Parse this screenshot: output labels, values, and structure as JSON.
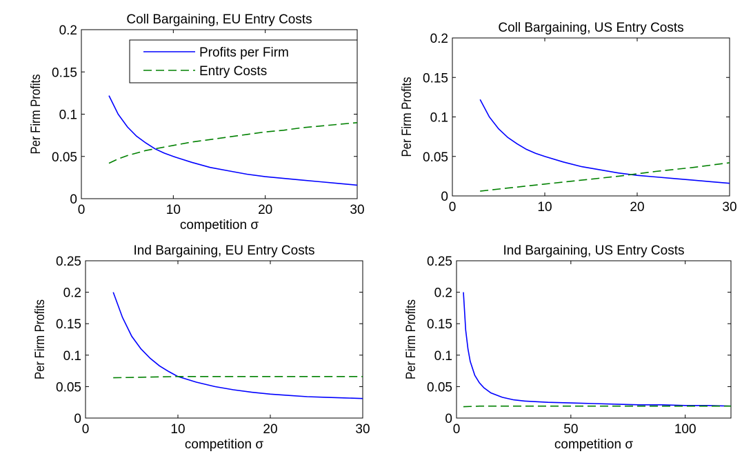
{
  "chart_data": [
    {
      "type": "line",
      "title": "Coll Bargaining, EU Entry Costs",
      "xlabel": "competition σ",
      "ylabel": "Per Firm Profits",
      "xlim": [
        0,
        30
      ],
      "ylim": [
        0,
        0.2
      ],
      "xticks": [
        "0",
        "10",
        "20",
        "30"
      ],
      "yticks": [
        "0",
        "0.05",
        "0.1",
        "0.15",
        "0.2"
      ],
      "grid": false,
      "legend": {
        "placement": "top-right",
        "entries": [
          "Profits per Firm",
          "Entry Costs"
        ]
      },
      "series": [
        {
          "name": "Profits per Firm",
          "color": "#0000ff",
          "style": "solid",
          "x": [
            3,
            4,
            5,
            6,
            7,
            8,
            9,
            10,
            12,
            14,
            16,
            18,
            20,
            22,
            24,
            26,
            28,
            30
          ],
          "y": [
            0.122,
            0.1,
            0.085,
            0.074,
            0.066,
            0.059,
            0.054,
            0.05,
            0.043,
            0.037,
            0.033,
            0.029,
            0.026,
            0.024,
            0.022,
            0.02,
            0.018,
            0.016
          ]
        },
        {
          "name": "Entry Costs",
          "color": "#008000",
          "style": "dashed",
          "x": [
            3,
            4,
            5,
            6,
            7,
            8,
            10,
            12,
            14,
            16,
            18,
            20,
            22,
            24,
            26,
            28,
            30
          ],
          "y": [
            0.042,
            0.047,
            0.051,
            0.054,
            0.057,
            0.059,
            0.063,
            0.067,
            0.07,
            0.073,
            0.076,
            0.079,
            0.081,
            0.084,
            0.086,
            0.088,
            0.09
          ]
        }
      ]
    },
    {
      "type": "line",
      "title": "Coll Bargaining, US Entry Costs",
      "xlabel": "",
      "ylabel": "Per Firm Profits",
      "xlim": [
        0,
        30
      ],
      "ylim": [
        0,
        0.2
      ],
      "xticks": [
        "0",
        "10",
        "20",
        "30"
      ],
      "yticks": [
        "0",
        "0.05",
        "0.1",
        "0.15",
        "0.2"
      ],
      "grid": false,
      "series": [
        {
          "color": "#0000ff",
          "style": "solid",
          "x": [
            3,
            4,
            5,
            6,
            7,
            8,
            9,
            10,
            12,
            14,
            16,
            18,
            20,
            22,
            24,
            26,
            28,
            30
          ],
          "y": [
            0.122,
            0.1,
            0.085,
            0.074,
            0.066,
            0.059,
            0.054,
            0.05,
            0.043,
            0.037,
            0.033,
            0.029,
            0.026,
            0.024,
            0.022,
            0.02,
            0.018,
            0.016
          ]
        },
        {
          "color": "#008000",
          "style": "dashed",
          "x": [
            3,
            6,
            10,
            14,
            18,
            22,
            26,
            30
          ],
          "y": [
            0.006,
            0.01,
            0.015,
            0.02,
            0.025,
            0.031,
            0.036,
            0.042
          ]
        }
      ]
    },
    {
      "type": "line",
      "title": "Ind Bargaining, EU Entry Costs",
      "xlabel": "competition σ",
      "ylabel": "Per Firm Profits",
      "xlim": [
        0,
        30
      ],
      "ylim": [
        0,
        0.25
      ],
      "xticks": [
        "0",
        "10",
        "20",
        "30"
      ],
      "yticks": [
        "0",
        "0.05",
        "0.1",
        "0.15",
        "0.2",
        "0.25"
      ],
      "grid": false,
      "series": [
        {
          "color": "#0000ff",
          "style": "solid",
          "x": [
            3,
            4,
            5,
            6,
            7,
            8,
            9,
            10,
            12,
            14,
            16,
            18,
            20,
            22,
            24,
            26,
            28,
            30
          ],
          "y": [
            0.2,
            0.16,
            0.13,
            0.11,
            0.095,
            0.083,
            0.074,
            0.066,
            0.057,
            0.05,
            0.045,
            0.041,
            0.038,
            0.036,
            0.034,
            0.033,
            0.032,
            0.031
          ]
        },
        {
          "color": "#008000",
          "style": "dashed",
          "x": [
            3,
            10,
            20,
            30
          ],
          "y": [
            0.064,
            0.066,
            0.066,
            0.066
          ]
        }
      ]
    },
    {
      "type": "line",
      "title": "Ind Bargaining, US Entry Costs",
      "xlabel": "competition σ",
      "ylabel": "Per Firm Profits",
      "xlim": [
        0,
        120
      ],
      "ylim": [
        0,
        0.25
      ],
      "xticks": [
        "0",
        "50",
        "100"
      ],
      "yticks": [
        "0",
        "0.05",
        "0.1",
        "0.15",
        "0.2",
        "0.25"
      ],
      "grid": false,
      "series": [
        {
          "color": "#0000ff",
          "style": "solid",
          "x": [
            3,
            4,
            5,
            6,
            8,
            10,
            12,
            15,
            20,
            25,
            30,
            40,
            50,
            60,
            70,
            80,
            90,
            100,
            110,
            120
          ],
          "y": [
            0.2,
            0.14,
            0.11,
            0.09,
            0.068,
            0.056,
            0.048,
            0.04,
            0.033,
            0.029,
            0.027,
            0.025,
            0.024,
            0.023,
            0.022,
            0.021,
            0.021,
            0.02,
            0.02,
            0.019
          ]
        },
        {
          "color": "#008000",
          "style": "dashed",
          "x": [
            3,
            10,
            50,
            120
          ],
          "y": [
            0.018,
            0.019,
            0.019,
            0.019
          ]
        }
      ]
    }
  ]
}
